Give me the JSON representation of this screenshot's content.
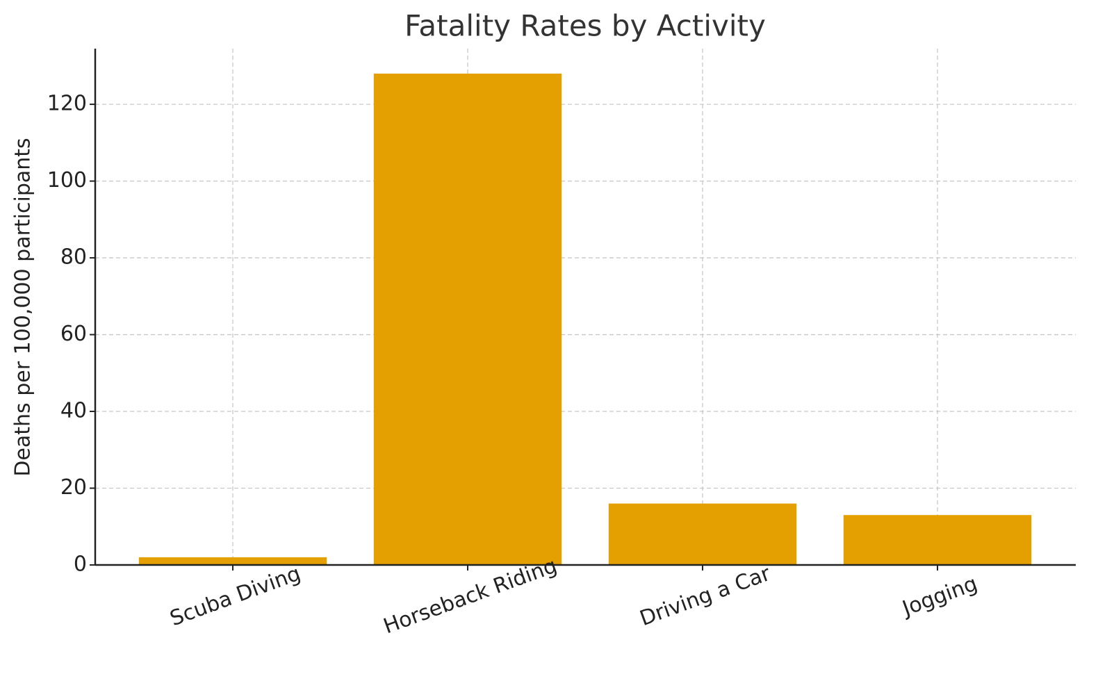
{
  "chart_data": {
    "type": "bar",
    "title": "Fatality Rates by Activity",
    "y_label": "Deaths per 100,000 participants",
    "categories": [
      "Scuba Diving",
      "Horseback Riding",
      "Driving a Car",
      "Jogging"
    ],
    "values": [
      2,
      128,
      16,
      13
    ],
    "color": "#e3a000",
    "ylim": [
      0,
      134.5
    ],
    "yticks": [
      0,
      20,
      40,
      60,
      80,
      100,
      120
    ],
    "grid": true
  }
}
